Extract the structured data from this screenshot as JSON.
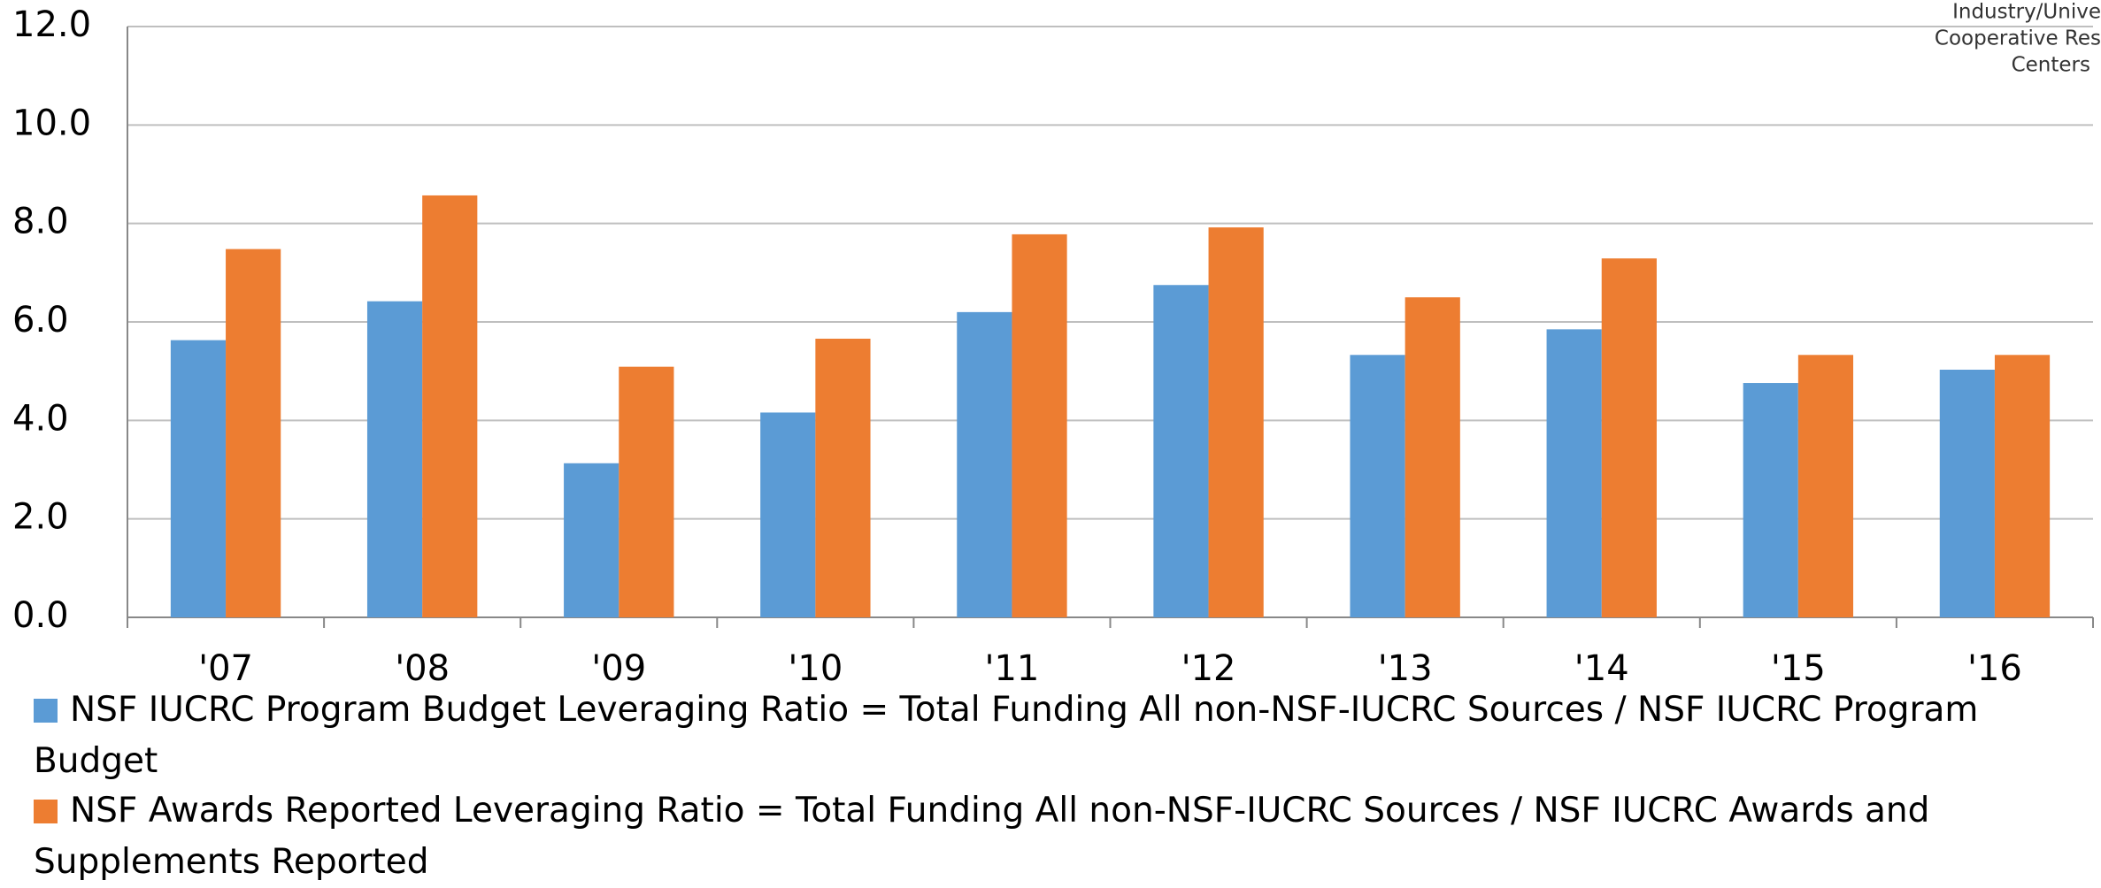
{
  "chart_data": {
    "type": "bar",
    "annotations": [
      "Industry/Unive",
      "Cooperative Res",
      "Centers"
    ],
    "categories": [
      "'07",
      "'08",
      "'09",
      "'10",
      "'11",
      "'12",
      "'13",
      "'14",
      "'15",
      "'16"
    ],
    "series": [
      {
        "name": "NSF IUCRC Program Budget Leveraging Ratio = Total Funding All non-NSF-IUCRC Sources / NSF IUCRC Program Budget",
        "color": "#5b9bd5",
        "values": [
          5.63,
          6.42,
          3.13,
          4.16,
          6.2,
          6.75,
          5.33,
          5.85,
          4.76,
          5.03
        ]
      },
      {
        "name": "NSF Awards Reported Leveraging Ratio = Total Funding All non-NSF-IUCRC Sources / NSF IUCRC Awards and Supplements Reported",
        "color": "#ed7d31",
        "values": [
          7.48,
          8.57,
          5.09,
          5.66,
          7.78,
          7.92,
          6.5,
          7.29,
          5.33,
          5.33
        ]
      }
    ],
    "ylim": [
      0,
      12
    ],
    "yticks": [
      {
        "value": 0,
        "label": "0.0"
      },
      {
        "value": 2,
        "label": "2.0"
      },
      {
        "value": 4,
        "label": "4.0"
      },
      {
        "value": 6,
        "label": "6.0"
      },
      {
        "value": 8,
        "label": "8.0"
      },
      {
        "value": 10,
        "label": "10.0"
      },
      {
        "value": 12,
        "label": "12.0"
      }
    ],
    "grid": true
  }
}
